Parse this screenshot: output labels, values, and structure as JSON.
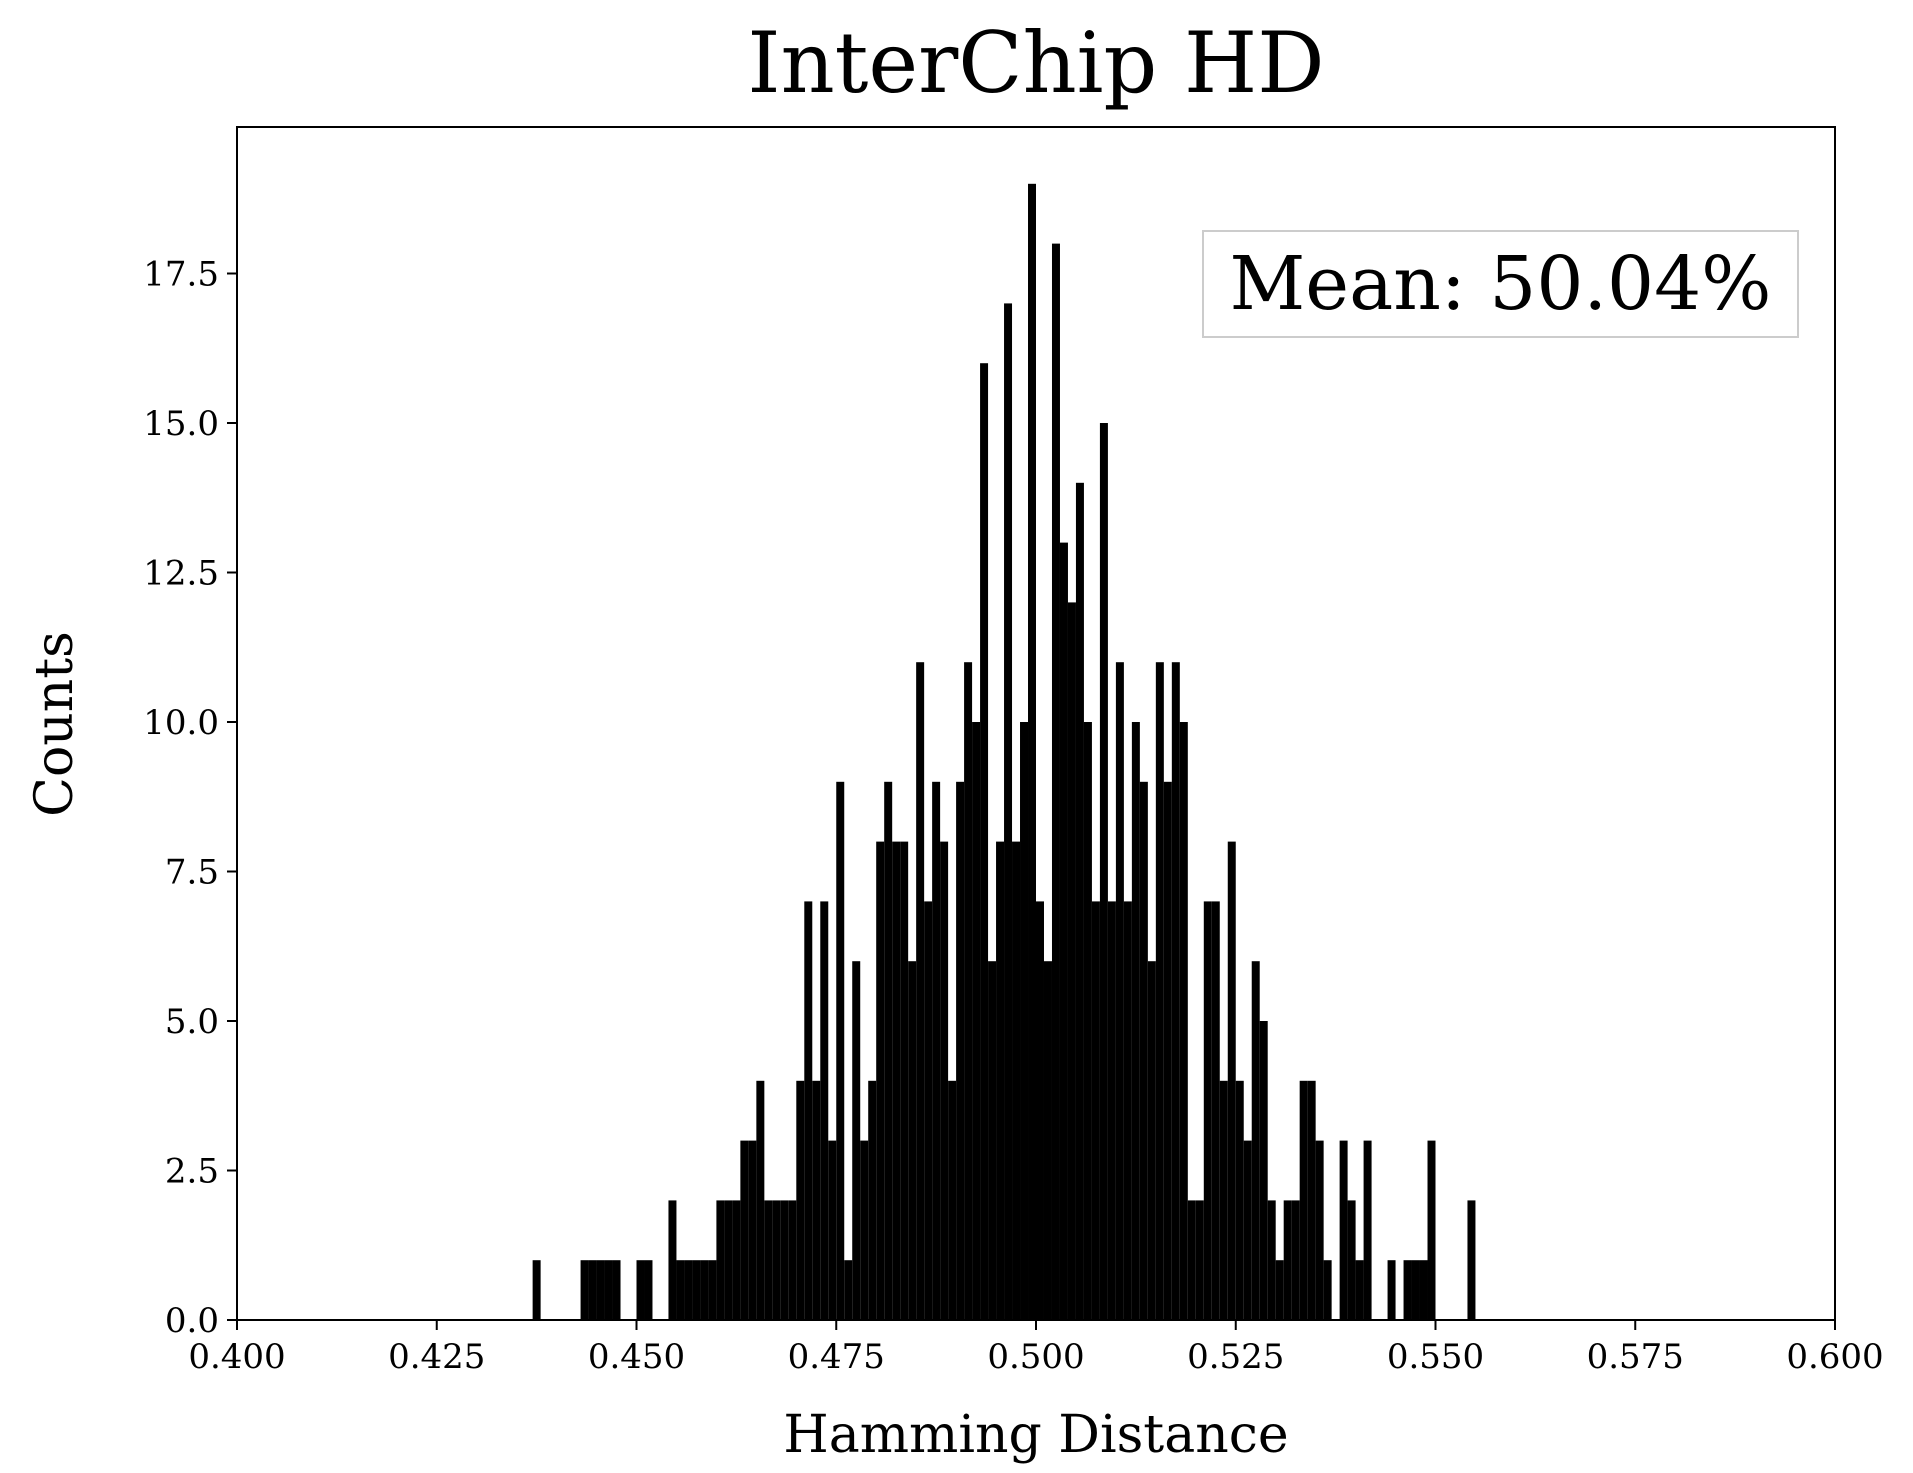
{
  "chart_data": {
    "type": "histogram",
    "title": "InterChip HD",
    "xlabel": "Hamming Distance",
    "ylabel": "Counts",
    "annotation": "Mean: 50.04%",
    "color": "#000000",
    "bins": [
      0.436,
      0.437,
      0.438,
      0.439,
      0.44,
      0.441,
      0.442,
      0.443,
      0.444,
      0.445,
      0.446,
      0.447,
      0.448,
      0.449,
      0.45,
      0.451,
      0.452,
      0.453,
      0.454,
      0.455,
      0.456,
      0.457,
      0.458,
      0.459,
      0.46,
      0.461,
      0.462,
      0.463,
      0.464,
      0.465,
      0.466,
      0.467,
      0.468,
      0.469,
      0.47,
      0.471,
      0.472,
      0.473,
      0.474,
      0.475,
      0.476,
      0.477,
      0.478,
      0.479,
      0.48,
      0.481,
      0.482,
      0.483,
      0.484,
      0.485,
      0.486,
      0.487,
      0.488,
      0.489,
      0.49,
      0.491,
      0.492,
      0.493,
      0.494,
      0.495,
      0.496,
      0.497,
      0.498,
      0.499,
      0.5,
      0.501,
      0.502,
      0.503,
      0.504,
      0.505,
      0.506,
      0.507,
      0.508,
      0.509,
      0.51,
      0.511,
      0.512,
      0.513,
      0.514,
      0.515,
      0.516,
      0.517,
      0.518,
      0.519,
      0.52,
      0.521,
      0.522,
      0.523,
      0.524,
      0.525,
      0.526,
      0.527,
      0.528,
      0.529,
      0.53,
      0.531,
      0.532,
      0.533,
      0.534,
      0.535,
      0.536,
      0.537,
      0.538,
      0.539,
      0.54,
      0.541,
      0.542,
      0.543,
      0.544,
      0.545,
      0.546,
      0.547,
      0.548,
      0.549,
      0.55,
      0.551,
      0.552,
      0.553,
      0.554,
      0.555,
      0.556
    ],
    "values": [
      0,
      1,
      0,
      0,
      0,
      0,
      0,
      1,
      1,
      1,
      1,
      1,
      0,
      0,
      1,
      1,
      0,
      0,
      2,
      1,
      1,
      1,
      1,
      1,
      2,
      2,
      2,
      3,
      3,
      4,
      2,
      2,
      2,
      2,
      4,
      7,
      4,
      7,
      3,
      9,
      1,
      6,
      3,
      4,
      8,
      9,
      8,
      8,
      6,
      11,
      7,
      9,
      8,
      4,
      9,
      11,
      10,
      16,
      6,
      8,
      17,
      8,
      10,
      19,
      7,
      6,
      18,
      13,
      12,
      14,
      10,
      7,
      15,
      7,
      11,
      7,
      10,
      9,
      6,
      11,
      9,
      11,
      10,
      2,
      2,
      7,
      7,
      4,
      8,
      4,
      3,
      6,
      5,
      2,
      1,
      2,
      2,
      4,
      4,
      3,
      1,
      0,
      3,
      2,
      1,
      3,
      0,
      0,
      1,
      0,
      1,
      1,
      1,
      3,
      0,
      0,
      0,
      0,
      2,
      0
    ],
    "xlim": [
      0.4,
      0.6
    ],
    "xticks": [
      {
        "value": 0.4,
        "label": "0.400"
      },
      {
        "value": 0.425,
        "label": "0.425"
      },
      {
        "value": 0.45,
        "label": "0.450"
      },
      {
        "value": 0.475,
        "label": "0.475"
      },
      {
        "value": 0.5,
        "label": "0.500"
      },
      {
        "value": 0.525,
        "label": "0.525"
      },
      {
        "value": 0.55,
        "label": "0.550"
      },
      {
        "value": 0.575,
        "label": "0.575"
      },
      {
        "value": 0.6,
        "label": "0.600"
      }
    ],
    "ylim": [
      0,
      19.95
    ],
    "yticks": [
      {
        "value": 0,
        "label": "0.0"
      },
      2.5,
      {
        "value": 5,
        "label": "5.0"
      },
      7.5,
      {
        "value": 10,
        "label": "10.0"
      },
      12.5,
      {
        "value": 15,
        "label": "15.0"
      },
      17.5
    ],
    "legend": "upper right"
  }
}
